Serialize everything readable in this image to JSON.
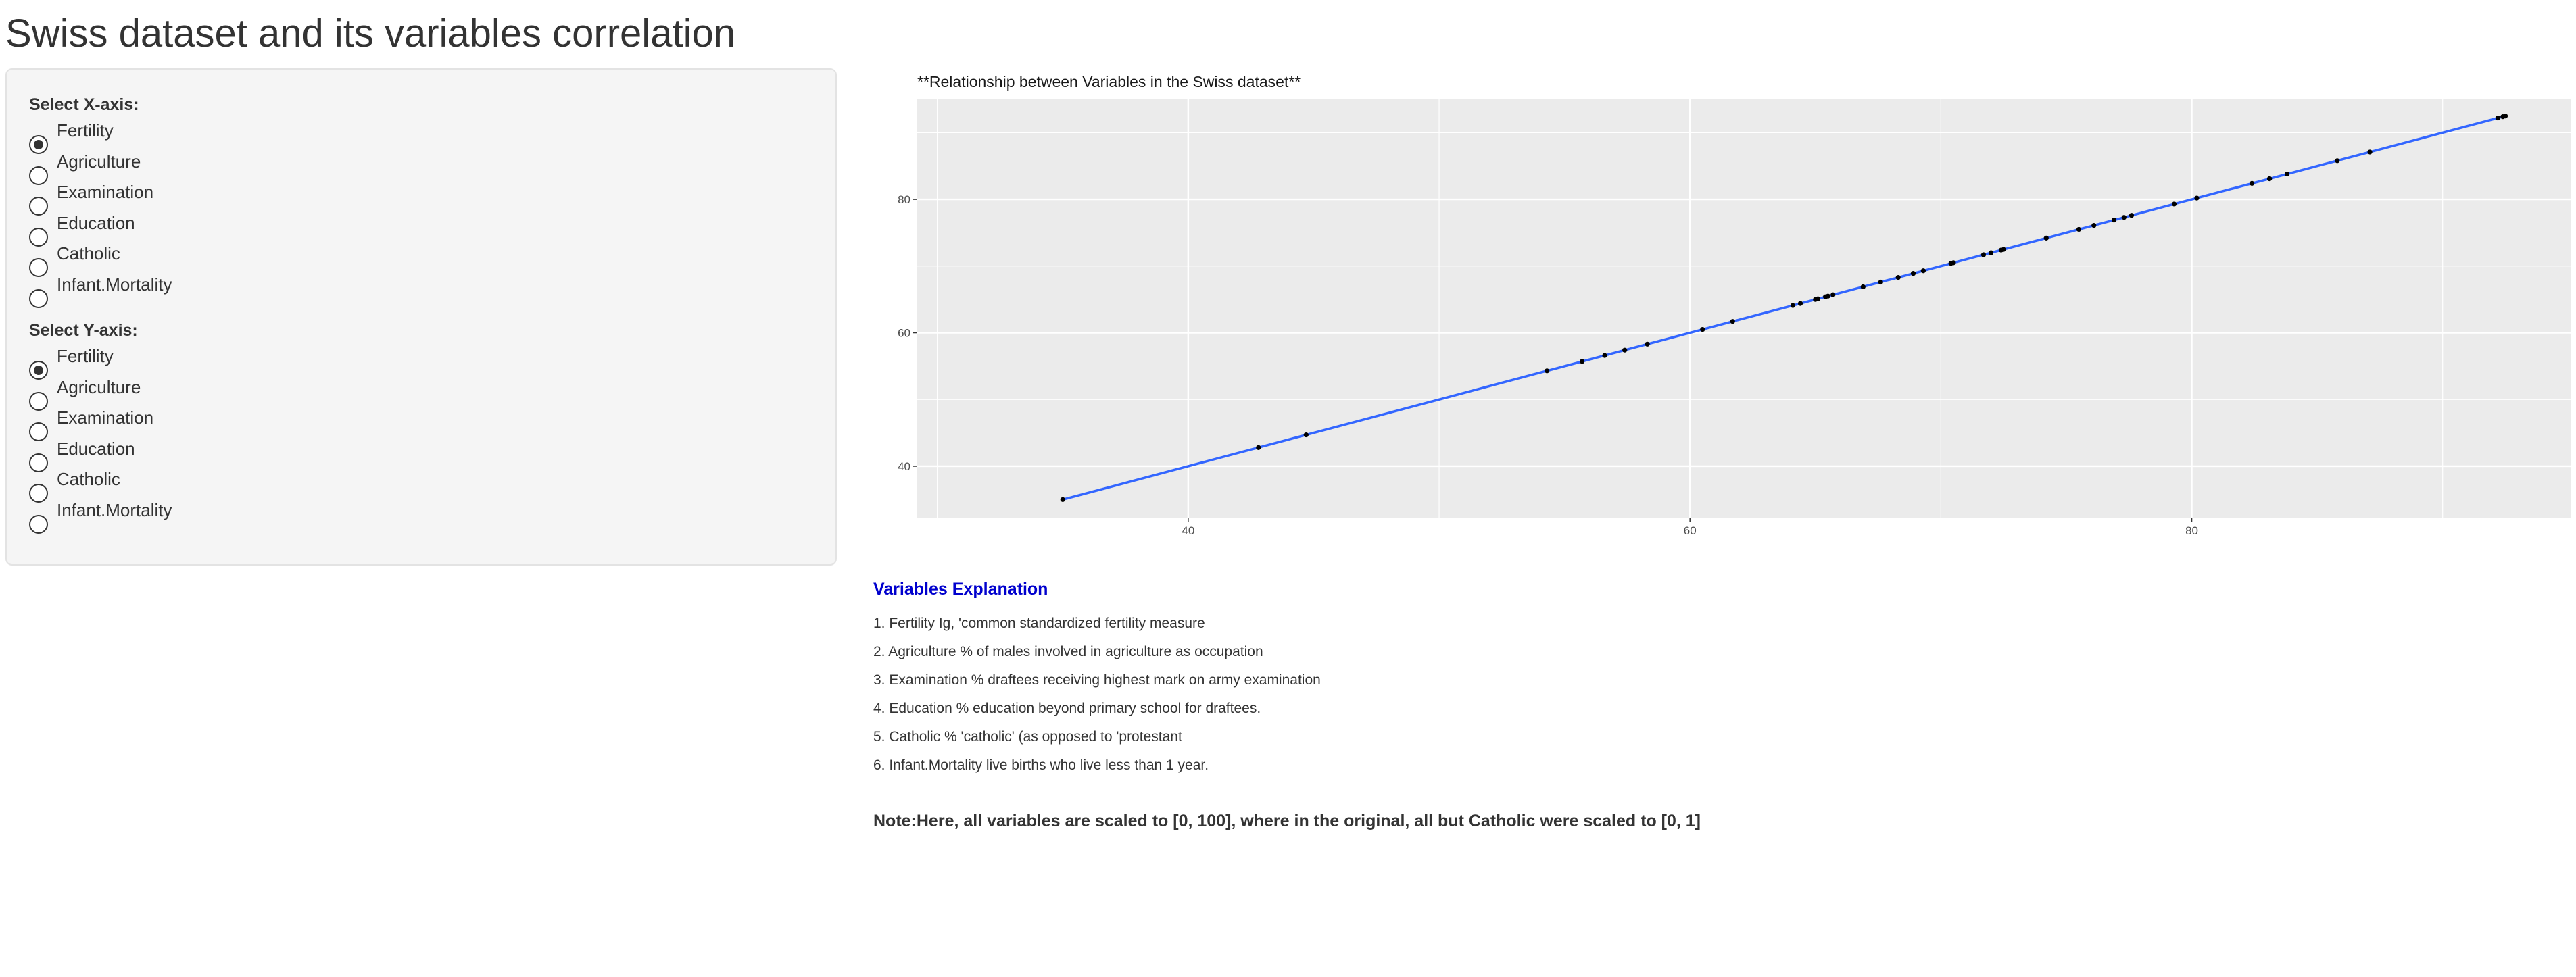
{
  "title": "Swiss dataset and its variables correlation",
  "sidebar": {
    "x_axis": {
      "label": "Select X-axis:",
      "options": [
        "Fertility",
        "Agriculture",
        "Examination",
        "Education",
        "Catholic",
        "Infant.Mortality"
      ],
      "selected": "Fertility"
    },
    "y_axis": {
      "label": "Select Y-axis:",
      "options": [
        "Fertility",
        "Agriculture",
        "Examination",
        "Education",
        "Catholic",
        "Infant.Mortality"
      ],
      "selected": "Fertility"
    }
  },
  "chart_data": {
    "type": "scatter",
    "title": "**Relationship between Variables in the Swiss dataset**",
    "xlabel": "",
    "ylabel": "",
    "xlim": [
      29.2,
      95.1
    ],
    "ylim": [
      32.3,
      95.1
    ],
    "x_ticks": [
      40,
      60,
      80
    ],
    "y_ticks": [
      40,
      60,
      80
    ],
    "grid": true,
    "background": "#ebebeb",
    "point_color": "#000000",
    "line_color": "#3366ff",
    "fit_line": {
      "x": [
        35.0,
        92.5
      ],
      "y": [
        35.0,
        92.5
      ]
    },
    "points": [
      [
        35.0,
        35.0
      ],
      [
        42.8,
        42.8
      ],
      [
        44.7,
        44.7
      ],
      [
        54.3,
        54.3
      ],
      [
        55.7,
        55.7
      ],
      [
        56.6,
        56.6
      ],
      [
        57.4,
        57.4
      ],
      [
        58.3,
        58.3
      ],
      [
        60.5,
        60.5
      ],
      [
        61.7,
        61.7
      ],
      [
        64.1,
        64.1
      ],
      [
        64.4,
        64.4
      ],
      [
        65.0,
        65.0
      ],
      [
        65.1,
        65.1
      ],
      [
        65.4,
        65.4
      ],
      [
        65.5,
        65.5
      ],
      [
        65.7,
        65.7
      ],
      [
        66.9,
        66.9
      ],
      [
        67.6,
        67.6
      ],
      [
        68.3,
        68.3
      ],
      [
        68.9,
        68.9
      ],
      [
        69.3,
        69.3
      ],
      [
        70.4,
        70.4
      ],
      [
        70.5,
        70.5
      ],
      [
        71.7,
        71.7
      ],
      [
        72.0,
        72.0
      ],
      [
        72.4,
        72.4
      ],
      [
        72.5,
        72.5
      ],
      [
        74.2,
        74.2
      ],
      [
        75.5,
        75.5
      ],
      [
        76.1,
        76.1
      ],
      [
        76.9,
        76.9
      ],
      [
        77.3,
        77.3
      ],
      [
        77.6,
        77.6
      ],
      [
        79.3,
        79.3
      ],
      [
        80.2,
        80.2
      ],
      [
        82.4,
        82.4
      ],
      [
        83.1,
        83.1
      ],
      [
        83.1,
        83.1
      ],
      [
        83.8,
        83.8
      ],
      [
        85.8,
        85.8
      ],
      [
        87.1,
        87.1
      ],
      [
        92.2,
        92.2
      ],
      [
        92.4,
        92.4
      ],
      [
        92.5,
        92.5
      ]
    ]
  },
  "explanations": {
    "header": "Variables Explanation",
    "items": [
      "1. Fertility Ig, 'common standardized fertility measure",
      "2. Agriculture % of males involved in agriculture as occupation",
      "3. Examination % draftees receiving highest mark on army examination",
      "4. Education % education beyond primary school for draftees.",
      "5. Catholic % 'catholic' (as opposed to 'protestant",
      "6. Infant.Mortality live births who live less than 1 year."
    ],
    "note": "Note:Here, all variables are scaled to [0, 100], where in the original, all but Catholic were scaled to [0, 1]"
  }
}
